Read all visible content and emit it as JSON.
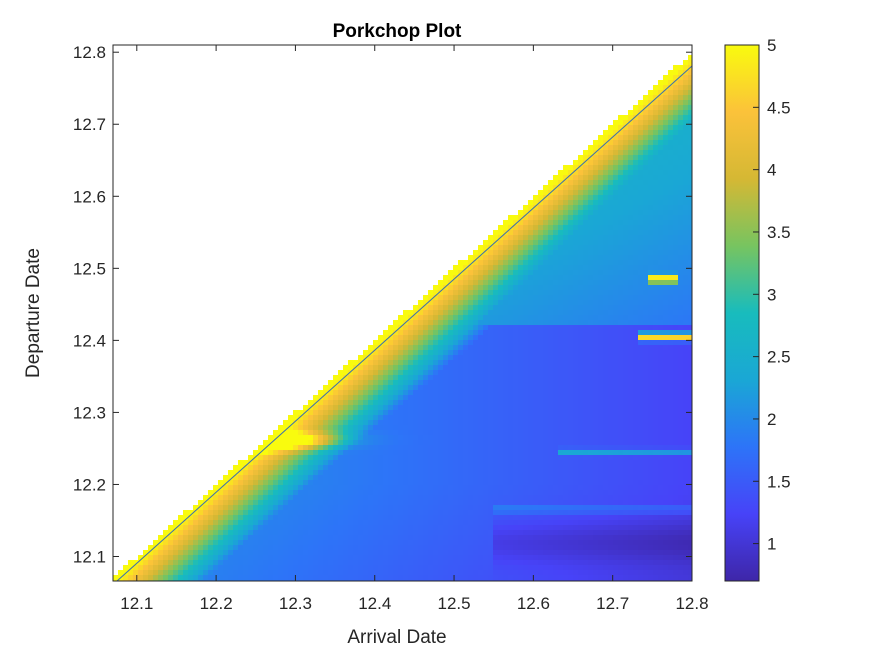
{
  "chart_data": {
    "type": "heatmap",
    "title": "Porkchop Plot",
    "xlabel": "Arrival Date",
    "ylabel": "Departure Date",
    "xlim": [
      12.07,
      12.8
    ],
    "ylim": [
      12.066,
      12.81
    ],
    "x_ticks": [
      "12.1",
      "12.2",
      "12.3",
      "12.4",
      "12.5",
      "12.6",
      "12.7",
      "12.8"
    ],
    "y_ticks": [
      "12.1",
      "12.2",
      "12.3",
      "12.4",
      "12.5",
      "12.6",
      "12.7",
      "12.8"
    ],
    "colorbar": {
      "range": [
        0.7,
        5
      ],
      "ticks": [
        "1",
        "1.5",
        "2",
        "2.5",
        "3",
        "3.5",
        "4",
        "4.5",
        "5"
      ],
      "colormap": "parula"
    },
    "grid": false,
    "valid_region": "departure below arrival (lower-right triangle)",
    "features": [
      {
        "kind": "saturated band",
        "departure": 12.485,
        "arrival_range": [
          12.74,
          12.78
        ],
        "value": 5
      },
      {
        "kind": "saturated band",
        "departure": 12.405,
        "arrival_range": [
          12.73,
          12.8
        ],
        "value": 5
      },
      {
        "kind": "ridge",
        "departure": 12.26,
        "value": 4.2
      },
      {
        "kind": "minimum basin",
        "departure_range": [
          12.1,
          12.2
        ],
        "arrival_range": [
          12.6,
          12.8
        ],
        "value": 0.8
      }
    ]
  }
}
